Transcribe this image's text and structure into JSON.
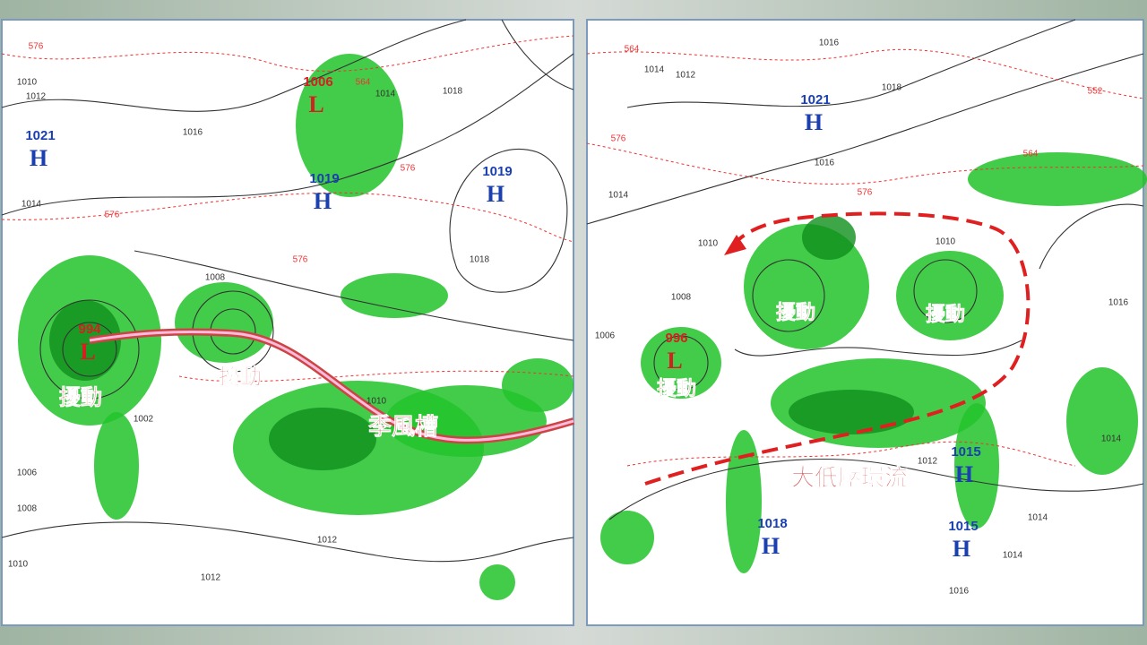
{
  "panels": [
    {
      "systems": [
        {
          "pressure": "1006",
          "symbol": "L"
        },
        {
          "pressure": "1021",
          "symbol": "H"
        },
        {
          "pressure": "1019",
          "symbol": "H"
        },
        {
          "pressure": "1019",
          "symbol": "H"
        },
        {
          "pressure": "994",
          "symbol": "L"
        }
      ],
      "annotations": [
        "擾動",
        "擾動",
        "季風槽"
      ],
      "isobar_labels": [
        "1010",
        "1012",
        "1014",
        "1016",
        "1018",
        "1018",
        "1014",
        "1008",
        "1006",
        "1008",
        "1010",
        "1012",
        "1012",
        "1002",
        "1010"
      ],
      "thickness_labels": [
        "576",
        "576",
        "576",
        "564",
        "576"
      ]
    },
    {
      "systems": [
        {
          "pressure": "1021",
          "symbol": "H"
        },
        {
          "pressure": "996",
          "symbol": "L"
        },
        {
          "pressure": "1015",
          "symbol": "H"
        },
        {
          "pressure": "1018",
          "symbol": "H"
        },
        {
          "pressure": "1015",
          "symbol": "H"
        }
      ],
      "annotations": [
        "擾動",
        "擾動",
        "擾動",
        "大低壓環流"
      ],
      "isobar_labels": [
        "1016",
        "1014",
        "1012",
        "1018",
        "1016",
        "1014",
        "1010",
        "1008",
        "1006",
        "1010",
        "1014",
        "1016",
        "1012",
        "1014",
        "1014",
        "1016"
      ],
      "thickness_labels": [
        "564",
        "552",
        "576",
        "576",
        "564"
      ]
    }
  ]
}
